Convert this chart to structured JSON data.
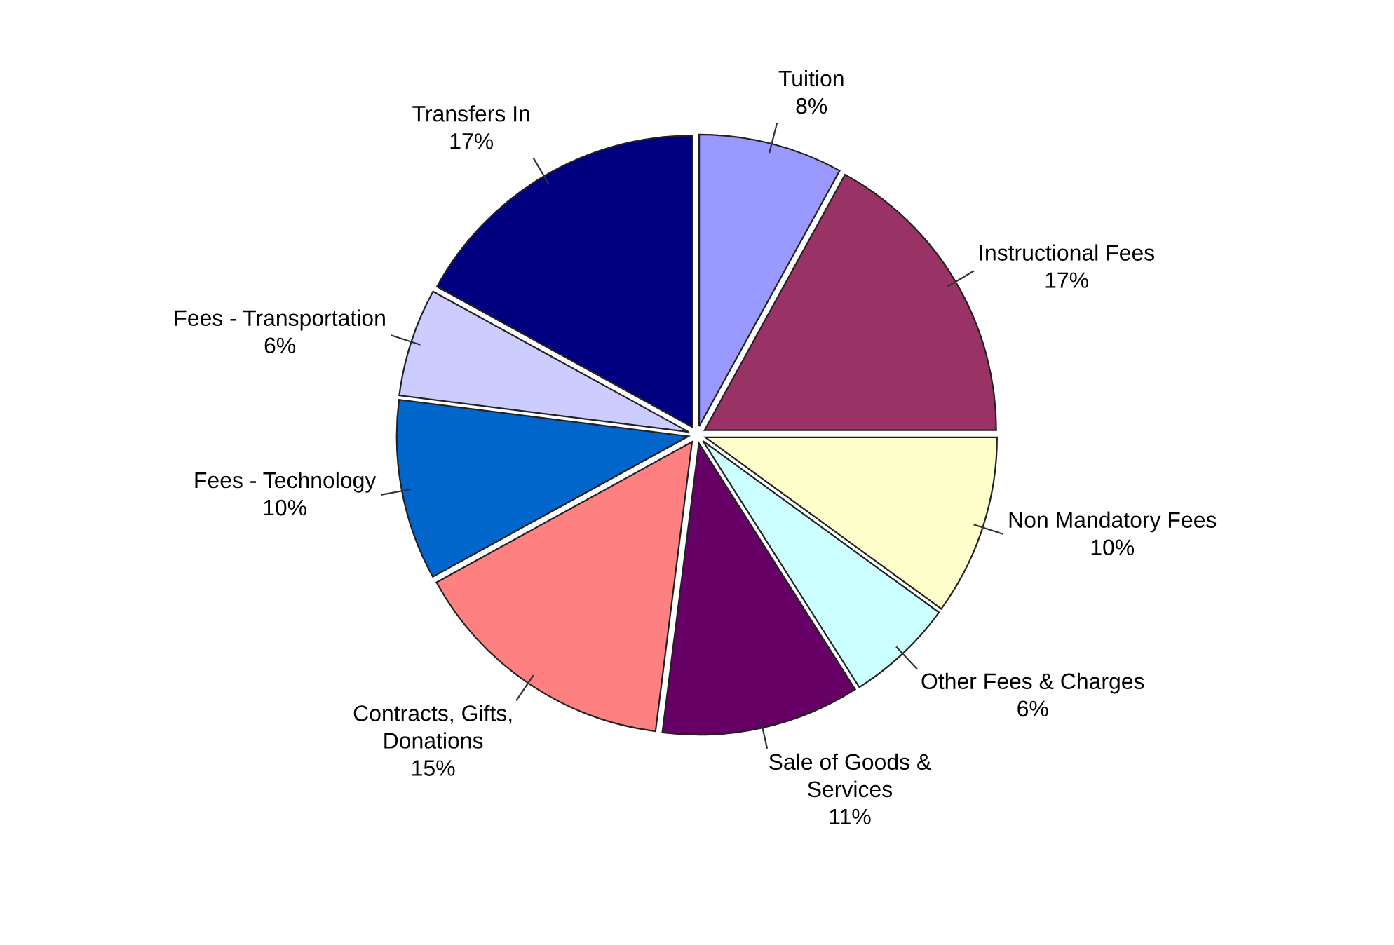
{
  "chart_data": {
    "type": "pie",
    "categories": [
      "Tuition",
      "Instructional Fees",
      "Non Mandatory Fees",
      "Other Fees & Charges",
      "Sale of Goods &\nServices",
      "Contracts, Gifts,\nDonations",
      "Fees - Technology",
      "Fees - Transportation",
      "Transfers In"
    ],
    "values": [
      8,
      17,
      10,
      6,
      11,
      15,
      10,
      6,
      17
    ],
    "colors": [
      "#9999ff",
      "#993366",
      "#ffffcc",
      "#ccffff",
      "#660066",
      "#ff8080",
      "#0066cc",
      "#ccccff",
      "#000080"
    ],
    "value_labels": [
      "8%",
      "17%",
      "10%",
      "6%",
      "11%",
      "15%",
      "10%",
      "6%",
      "17%"
    ],
    "legend": false
  }
}
